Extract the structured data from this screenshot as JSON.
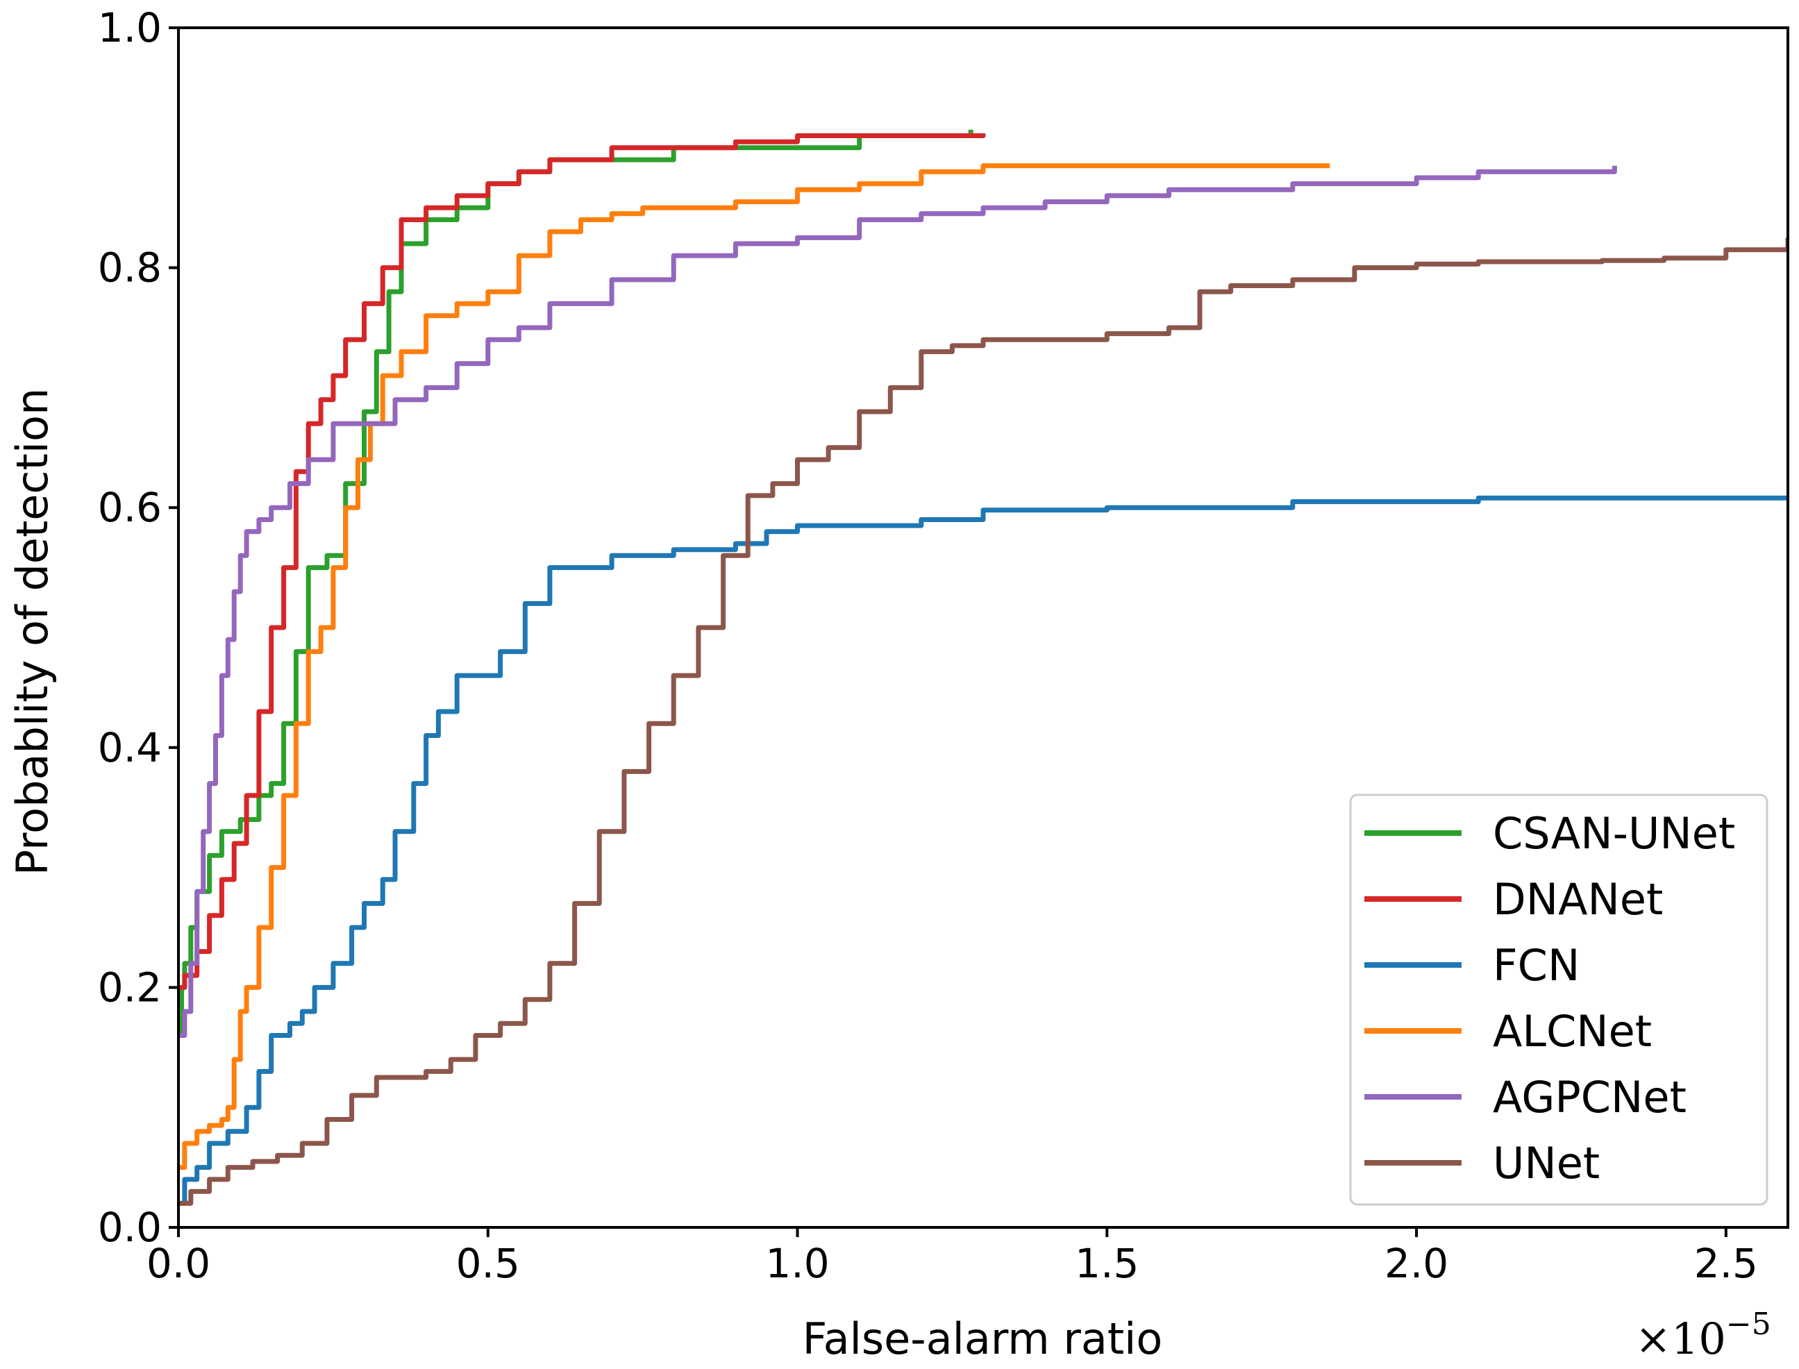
{
  "chart_data": {
    "type": "line",
    "title": "",
    "xlabel": "False-alarm ratio",
    "ylabel": "Probablity of detection",
    "x_offset_text": {
      "base": "×10",
      "exponent": "−5"
    },
    "xlim": [
      0,
      2.6
    ],
    "ylim": [
      0,
      1.0
    ],
    "xticks": [
      0.0,
      0.5,
      1.0,
      1.5,
      2.0,
      2.5
    ],
    "xtick_labels": [
      "0.0",
      "0.5",
      "1.0",
      "1.5",
      "2.0",
      "2.5"
    ],
    "yticks": [
      0.0,
      0.2,
      0.4,
      0.6,
      0.8,
      1.0
    ],
    "ytick_labels": [
      "0.0",
      "0.2",
      "0.4",
      "0.6",
      "0.8",
      "1.0"
    ],
    "grid": false,
    "legend_position": "lower-right",
    "series": [
      {
        "name": "CSAN-UNet",
        "color": "#2ca02c",
        "x": [
          0.0,
          0.005,
          0.01,
          0.02,
          0.03,
          0.05,
          0.07,
          0.1,
          0.13,
          0.15,
          0.17,
          0.19,
          0.21,
          0.24,
          0.27,
          0.3,
          0.32,
          0.34,
          0.36,
          0.4,
          0.45,
          0.5,
          0.55,
          0.6,
          0.7,
          0.8,
          0.9,
          1.0,
          1.05,
          1.1,
          1.2,
          1.28
        ],
        "y": [
          0.16,
          0.2,
          0.22,
          0.25,
          0.28,
          0.31,
          0.33,
          0.34,
          0.36,
          0.37,
          0.42,
          0.48,
          0.55,
          0.56,
          0.62,
          0.68,
          0.73,
          0.78,
          0.82,
          0.84,
          0.85,
          0.87,
          0.88,
          0.89,
          0.89,
          0.9,
          0.9,
          0.9,
          0.9,
          0.91,
          0.91,
          0.915
        ]
      },
      {
        "name": "DNANet",
        "color": "#d62728",
        "x": [
          0.0,
          0.01,
          0.03,
          0.05,
          0.07,
          0.09,
          0.11,
          0.13,
          0.15,
          0.17,
          0.19,
          0.21,
          0.23,
          0.25,
          0.27,
          0.3,
          0.33,
          0.36,
          0.4,
          0.45,
          0.5,
          0.55,
          0.6,
          0.65,
          0.7,
          0.8,
          0.9,
          1.0,
          1.1,
          1.2,
          1.3
        ],
        "y": [
          0.2,
          0.21,
          0.23,
          0.26,
          0.29,
          0.32,
          0.36,
          0.43,
          0.5,
          0.55,
          0.63,
          0.67,
          0.69,
          0.71,
          0.74,
          0.77,
          0.8,
          0.84,
          0.85,
          0.86,
          0.87,
          0.88,
          0.89,
          0.89,
          0.9,
          0.9,
          0.905,
          0.91,
          0.91,
          0.91,
          0.912
        ]
      },
      {
        "name": "FCN",
        "color": "#1f77b4",
        "x": [
          0.0,
          0.01,
          0.03,
          0.05,
          0.08,
          0.11,
          0.13,
          0.15,
          0.18,
          0.2,
          0.22,
          0.25,
          0.28,
          0.3,
          0.33,
          0.35,
          0.38,
          0.4,
          0.42,
          0.45,
          0.48,
          0.52,
          0.56,
          0.6,
          0.64,
          0.7,
          0.75,
          0.8,
          0.85,
          0.9,
          0.95,
          1.0,
          1.1,
          1.2,
          1.3,
          1.5,
          1.8,
          2.1,
          2.3,
          2.6
        ],
        "y": [
          0.02,
          0.04,
          0.05,
          0.07,
          0.08,
          0.1,
          0.13,
          0.16,
          0.17,
          0.18,
          0.2,
          0.22,
          0.25,
          0.27,
          0.29,
          0.33,
          0.37,
          0.41,
          0.43,
          0.46,
          0.46,
          0.48,
          0.52,
          0.55,
          0.55,
          0.56,
          0.56,
          0.565,
          0.565,
          0.57,
          0.58,
          0.585,
          0.585,
          0.59,
          0.598,
          0.6,
          0.605,
          0.608,
          0.608,
          0.61
        ]
      },
      {
        "name": "ALCNet",
        "color": "#ff7f0e",
        "x": [
          0.0,
          0.01,
          0.03,
          0.05,
          0.07,
          0.08,
          0.09,
          0.1,
          0.11,
          0.13,
          0.15,
          0.17,
          0.19,
          0.21,
          0.23,
          0.25,
          0.27,
          0.29,
          0.31,
          0.33,
          0.36,
          0.4,
          0.45,
          0.5,
          0.55,
          0.6,
          0.65,
          0.7,
          0.75,
          0.8,
          0.9,
          1.0,
          1.1,
          1.2,
          1.3,
          1.4,
          1.5,
          1.6,
          1.7,
          1.86
        ],
        "y": [
          0.05,
          0.07,
          0.08,
          0.085,
          0.09,
          0.1,
          0.14,
          0.18,
          0.2,
          0.25,
          0.3,
          0.36,
          0.42,
          0.48,
          0.5,
          0.55,
          0.6,
          0.64,
          0.67,
          0.71,
          0.73,
          0.76,
          0.77,
          0.78,
          0.81,
          0.83,
          0.84,
          0.845,
          0.85,
          0.85,
          0.855,
          0.865,
          0.87,
          0.88,
          0.885,
          0.885,
          0.885,
          0.885,
          0.885,
          0.885
        ]
      },
      {
        "name": "AGPCNet",
        "color": "#9467bd",
        "x": [
          0.0,
          0.01,
          0.02,
          0.03,
          0.04,
          0.05,
          0.06,
          0.07,
          0.08,
          0.09,
          0.1,
          0.11,
          0.13,
          0.15,
          0.18,
          0.21,
          0.25,
          0.3,
          0.35,
          0.4,
          0.45,
          0.5,
          0.55,
          0.6,
          0.7,
          0.8,
          0.9,
          1.0,
          1.1,
          1.2,
          1.3,
          1.4,
          1.5,
          1.6,
          1.7,
          1.8,
          1.9,
          2.0,
          2.1,
          2.2,
          2.32
        ],
        "y": [
          0.16,
          0.18,
          0.22,
          0.28,
          0.33,
          0.37,
          0.41,
          0.46,
          0.49,
          0.53,
          0.56,
          0.58,
          0.59,
          0.6,
          0.62,
          0.64,
          0.67,
          0.67,
          0.69,
          0.7,
          0.72,
          0.74,
          0.75,
          0.77,
          0.79,
          0.81,
          0.82,
          0.825,
          0.84,
          0.845,
          0.85,
          0.855,
          0.86,
          0.865,
          0.865,
          0.87,
          0.87,
          0.875,
          0.88,
          0.88,
          0.885
        ]
      },
      {
        "name": "UNet",
        "color": "#8c564b",
        "x": [
          0.0,
          0.02,
          0.05,
          0.08,
          0.12,
          0.16,
          0.2,
          0.24,
          0.28,
          0.32,
          0.36,
          0.4,
          0.44,
          0.48,
          0.52,
          0.56,
          0.6,
          0.64,
          0.68,
          0.72,
          0.76,
          0.8,
          0.84,
          0.88,
          0.92,
          0.96,
          1.0,
          1.05,
          1.1,
          1.15,
          1.2,
          1.25,
          1.3,
          1.4,
          1.5,
          1.6,
          1.65,
          1.7,
          1.8,
          1.9,
          2.0,
          2.1,
          2.2,
          2.3,
          2.4,
          2.5,
          2.6
        ],
        "y": [
          0.02,
          0.03,
          0.04,
          0.05,
          0.055,
          0.06,
          0.07,
          0.09,
          0.11,
          0.125,
          0.125,
          0.13,
          0.14,
          0.16,
          0.17,
          0.19,
          0.22,
          0.27,
          0.33,
          0.38,
          0.42,
          0.46,
          0.5,
          0.56,
          0.61,
          0.62,
          0.64,
          0.65,
          0.68,
          0.7,
          0.73,
          0.735,
          0.74,
          0.74,
          0.745,
          0.75,
          0.78,
          0.785,
          0.79,
          0.8,
          0.803,
          0.805,
          0.805,
          0.806,
          0.808,
          0.815,
          0.825
        ]
      }
    ]
  }
}
